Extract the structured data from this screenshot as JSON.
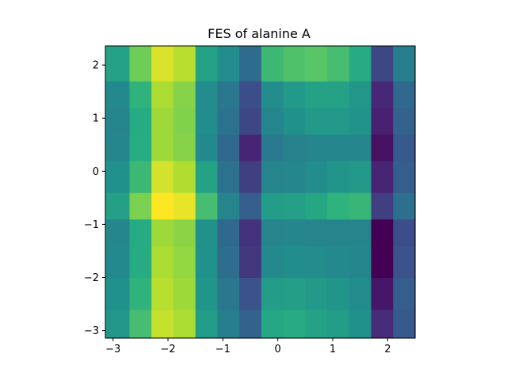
{
  "chart_data": {
    "type": "heatmap",
    "title": "FES of alanine A",
    "xlabel": "",
    "ylabel": "",
    "x_edges": [
      -3.14,
      -2.7,
      -2.3,
      -1.9,
      -1.5,
      -1.1,
      -0.7,
      -0.3,
      0.1,
      0.5,
      0.9,
      1.3,
      1.7,
      2.1,
      2.5
    ],
    "y_edges": [
      -3.14,
      -2.6,
      -2.0,
      -1.4,
      -0.9,
      -0.4,
      0.2,
      0.7,
      1.2,
      1.7,
      2.36
    ],
    "xlim": [
      -3.14,
      2.5
    ],
    "ylim": [
      -3.14,
      2.36
    ],
    "x_ticks": [
      -3,
      -2,
      -1,
      0,
      1,
      2
    ],
    "x_tick_labels": [
      "−3",
      "−2",
      "−1",
      "0",
      "1",
      "2"
    ],
    "y_ticks": [
      -3,
      -2,
      -1,
      0,
      1,
      2
    ],
    "y_tick_labels": [
      "−3",
      "−2",
      "−1",
      "0",
      "1",
      "2"
    ],
    "colormap": "viridis",
    "value_range": [
      0,
      1
    ],
    "values": [
      [
        0.53,
        0.7,
        0.92,
        0.88,
        0.55,
        0.43,
        0.32,
        0.6,
        0.62,
        0.58,
        0.55,
        0.5,
        0.15,
        0.28
      ],
      [
        0.5,
        0.65,
        0.9,
        0.86,
        0.52,
        0.4,
        0.25,
        0.55,
        0.56,
        0.54,
        0.52,
        0.48,
        0.08,
        0.3
      ],
      [
        0.47,
        0.62,
        0.88,
        0.84,
        0.5,
        0.36,
        0.18,
        0.47,
        0.49,
        0.48,
        0.47,
        0.46,
        0.0,
        0.25
      ],
      [
        0.46,
        0.62,
        0.86,
        0.83,
        0.5,
        0.34,
        0.17,
        0.45,
        0.46,
        0.45,
        0.45,
        0.45,
        0.0,
        0.24
      ],
      [
        0.57,
        0.8,
        1.0,
        0.97,
        0.7,
        0.45,
        0.3,
        0.55,
        0.57,
        0.6,
        0.65,
        0.67,
        0.2,
        0.37
      ],
      [
        0.5,
        0.68,
        0.94,
        0.89,
        0.58,
        0.38,
        0.2,
        0.45,
        0.46,
        0.48,
        0.52,
        0.54,
        0.13,
        0.3
      ],
      [
        0.46,
        0.63,
        0.86,
        0.82,
        0.47,
        0.34,
        0.13,
        0.41,
        0.44,
        0.46,
        0.46,
        0.46,
        0.06,
        0.28
      ],
      [
        0.45,
        0.62,
        0.86,
        0.81,
        0.48,
        0.38,
        0.22,
        0.46,
        0.5,
        0.54,
        0.54,
        0.51,
        0.12,
        0.32
      ],
      [
        0.47,
        0.65,
        0.88,
        0.82,
        0.48,
        0.4,
        0.24,
        0.48,
        0.54,
        0.58,
        0.58,
        0.53,
        0.14,
        0.34
      ],
      [
        0.58,
        0.78,
        0.95,
        0.9,
        0.58,
        0.48,
        0.35,
        0.68,
        0.72,
        0.74,
        0.7,
        0.62,
        0.22,
        0.43
      ]
    ]
  }
}
